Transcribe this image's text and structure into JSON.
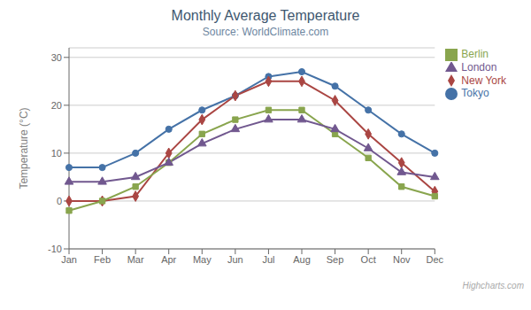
{
  "chart_data": {
    "type": "line",
    "title": "Monthly Average Temperature",
    "subtitle": "Source: WorldClimate.com",
    "ylabel": "Temperature (°C)",
    "annotations": [
      "Highcharts.com"
    ],
    "categories": [
      "Jan",
      "Feb",
      "Mar",
      "Apr",
      "May",
      "Jun",
      "Jul",
      "Aug",
      "Sep",
      "Oct",
      "Nov",
      "Dec"
    ],
    "series": [
      {
        "name": "Tokyo",
        "color": "#4572A7",
        "marker": "circle",
        "values": [
          7,
          7,
          10,
          15,
          19,
          22,
          26,
          27,
          24,
          19,
          14,
          10
        ]
      },
      {
        "name": "New York",
        "color": "#AA4643",
        "marker": "diamond",
        "values": [
          0,
          0,
          1,
          10,
          17,
          22,
          25,
          25,
          21,
          14,
          8,
          2
        ]
      },
      {
        "name": "Berlin",
        "color": "#89A54E",
        "marker": "square",
        "values": [
          -2,
          0,
          3,
          8,
          14,
          17,
          19,
          19,
          14,
          9,
          3,
          1
        ]
      },
      {
        "name": "London",
        "color": "#71588F",
        "marker": "triangle",
        "values": [
          4,
          4,
          5,
          8,
          12,
          15,
          17,
          17,
          15,
          11,
          6,
          5
        ]
      }
    ],
    "ylim": [
      -10,
      32
    ],
    "yticks": [
      -10,
      0,
      10,
      20,
      30
    ],
    "grid": true,
    "legend": "right"
  }
}
